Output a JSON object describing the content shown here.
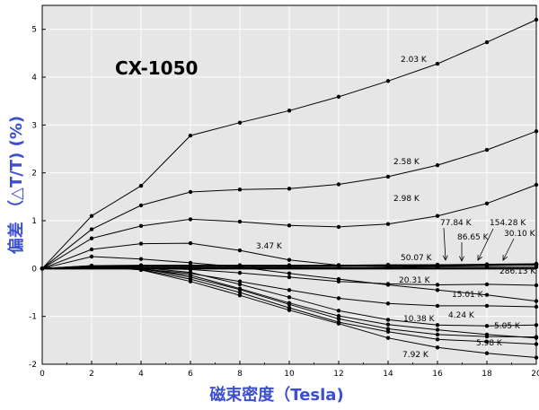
{
  "chart_data": {
    "type": "line",
    "title": "CX-1050",
    "xlabel": "磁束密度（Tesla)",
    "ylabel": "偏差 （△T/T) (%)",
    "xlim": [
      0,
      20
    ],
    "ylim": [
      -2,
      5.5
    ],
    "xticks": [
      "0",
      "2",
      "4",
      "6",
      "8",
      "10",
      "12",
      "14",
      "16",
      "18",
      "20"
    ],
    "yticks": [
      "-2",
      "-1",
      "0",
      "1",
      "2",
      "3",
      "4",
      "5"
    ],
    "grid": true,
    "colors": {
      "plot_bg": "#e6e6e6",
      "axis_title": "#3b4fd0",
      "grid": "#ffffff",
      "line": "#000000"
    },
    "x": [
      0,
      2,
      4,
      6,
      8,
      10,
      12,
      14,
      16,
      18,
      20
    ],
    "series": [
      {
        "name": "2.03 K",
        "values": [
          0,
          1.1,
          1.73,
          2.78,
          3.05,
          3.3,
          3.59,
          3.92,
          4.28,
          4.73,
          5.2
        ]
      },
      {
        "name": "2.58 K",
        "values": [
          0,
          0.82,
          1.32,
          1.6,
          1.65,
          1.67,
          1.76,
          1.92,
          2.16,
          2.48,
          2.87
        ]
      },
      {
        "name": "2.98 K",
        "values": [
          0,
          0.63,
          0.89,
          1.03,
          0.98,
          0.9,
          0.87,
          0.93,
          1.1,
          1.36,
          1.75
        ]
      },
      {
        "name": "3.47 K",
        "values": [
          0,
          0.4,
          0.52,
          0.53,
          0.38,
          0.18,
          0.07,
          0.04,
          0.05,
          0.06,
          0.08
        ]
      },
      {
        "name": "77.84 K",
        "values": [
          0,
          0.06,
          0.07,
          0.07,
          0.07,
          0.07,
          0.07,
          0.08,
          0.08,
          0.09,
          0.1
        ]
      },
      {
        "name": "86.65 K",
        "values": [
          0,
          0.05,
          0.06,
          0.06,
          0.06,
          0.06,
          0.07,
          0.07,
          0.08,
          0.08,
          0.09
        ]
      },
      {
        "name": "154.28 K",
        "values": [
          0,
          0.05,
          0.05,
          0.05,
          0.05,
          0.05,
          0.06,
          0.06,
          0.07,
          0.08,
          0.09
        ]
      },
      {
        "name": "30.10 K",
        "values": [
          0,
          0.04,
          0.04,
          0.04,
          0.04,
          0.04,
          0.05,
          0.05,
          0.06,
          0.07,
          0.08
        ]
      },
      {
        "name": "50.07 K",
        "values": [
          0,
          0.04,
          0.05,
          0.05,
          0.05,
          0.05,
          0.05,
          0.06,
          0.06,
          0.07,
          0.07
        ]
      },
      {
        "name": "286.13 K",
        "values": [
          0,
          0.02,
          0.02,
          0.02,
          0.02,
          0.02,
          0.02,
          0.02,
          0.03,
          0.03,
          0.03
        ]
      },
      {
        "name": "",
        "values": [
          0,
          0.25,
          0.2,
          0.12,
          0.03,
          -0.1,
          -0.22,
          -0.34,
          -0.45,
          -0.55,
          -0.68
        ]
      },
      {
        "name": "20.31 K",
        "values": [
          0,
          0.02,
          0.01,
          -0.02,
          -0.09,
          -0.18,
          -0.27,
          -0.32,
          -0.34,
          -0.33,
          -0.35
        ]
      },
      {
        "name": "15.01 K",
        "values": [
          0,
          0.03,
          -0.01,
          -0.1,
          -0.27,
          -0.45,
          -0.62,
          -0.73,
          -0.78,
          -0.78,
          -0.8
        ]
      },
      {
        "name": "4.24 K",
        "values": [
          0,
          0.06,
          0.02,
          -0.08,
          -0.33,
          -0.6,
          -0.88,
          -1.07,
          -1.18,
          -1.2,
          -1.18
        ]
      },
      {
        "name": "10.38 K",
        "values": [
          0,
          0.04,
          -0.01,
          -0.14,
          -0.42,
          -0.72,
          -0.99,
          -1.17,
          -1.28,
          -1.38,
          -1.45
        ]
      },
      {
        "name": "5.05 K",
        "values": [
          0,
          0.05,
          0.0,
          -0.18,
          -0.44,
          -0.75,
          -1.05,
          -1.26,
          -1.38,
          -1.42,
          -1.43
        ]
      },
      {
        "name": "5.98 K",
        "values": [
          0,
          0.05,
          -0.02,
          -0.22,
          -0.5,
          -0.82,
          -1.12,
          -1.32,
          -1.48,
          -1.53,
          -1.58
        ]
      },
      {
        "name": "7.92 K",
        "values": [
          0,
          0.05,
          -0.03,
          -0.27,
          -0.56,
          -0.87,
          -1.15,
          -1.45,
          -1.65,
          -1.77,
          -1.86
        ]
      }
    ]
  }
}
